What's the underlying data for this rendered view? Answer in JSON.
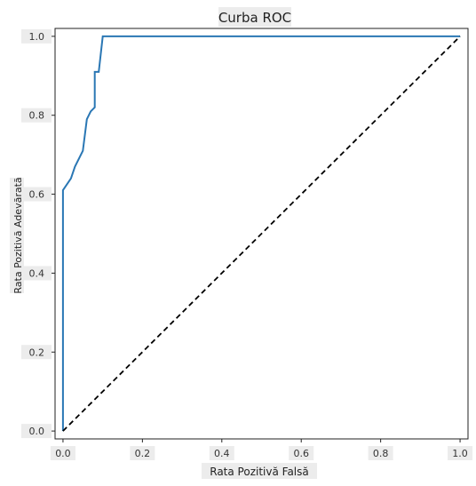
{
  "chart_data": {
    "type": "line",
    "title": "Curba ROC",
    "xlabel": "Rata Pozitivă Falsă",
    "ylabel": "Rata Pozitivă Adevărată",
    "xlim": [
      -0.02,
      1.02
    ],
    "ylim": [
      -0.02,
      1.02
    ],
    "xticks": [
      0.0,
      0.2,
      0.4,
      0.6,
      0.8,
      1.0
    ],
    "yticks": [
      0.0,
      0.2,
      0.4,
      0.6,
      0.8,
      1.0
    ],
    "xtick_labels": [
      "0.0",
      "0.2",
      "0.4",
      "0.6",
      "0.8",
      "1.0"
    ],
    "ytick_labels": [
      "0.0",
      "0.2",
      "0.4",
      "0.6",
      "0.8",
      "1.0"
    ],
    "grid": false,
    "series": [
      {
        "color": "#2a77b4",
        "style": "solid",
        "x": [
          0.0,
          0.0,
          0.02,
          0.03,
          0.05,
          0.06,
          0.07,
          0.08,
          0.08,
          0.09,
          0.1,
          1.0
        ],
        "y": [
          0.0,
          0.61,
          0.64,
          0.67,
          0.71,
          0.79,
          0.81,
          0.82,
          0.91,
          0.91,
          1.0,
          1.0
        ]
      },
      {
        "color": "#000000",
        "style": "dashed",
        "x": [
          0.0,
          1.0
        ],
        "y": [
          0.0,
          1.0
        ]
      }
    ]
  }
}
